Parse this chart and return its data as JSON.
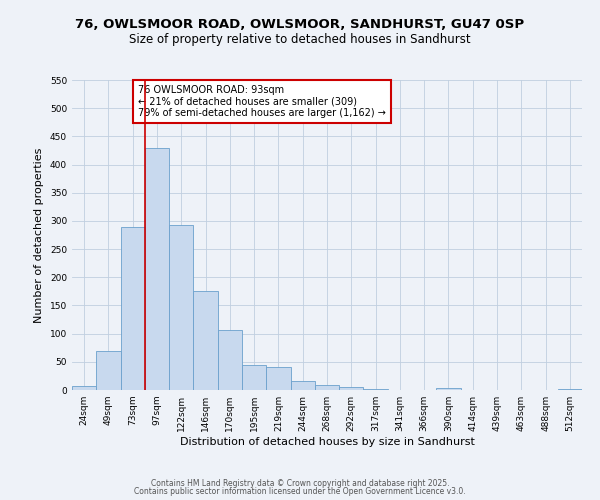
{
  "title": "76, OWLSMOOR ROAD, OWLSMOOR, SANDHURST, GU47 0SP",
  "subtitle": "Size of property relative to detached houses in Sandhurst",
  "xlabel": "Distribution of detached houses by size in Sandhurst",
  "ylabel": "Number of detached properties",
  "bar_color": "#c8d9ee",
  "bar_edge_color": "#6aa0cc",
  "grid_color": "#c0cfe0",
  "background_color": "#eef2f8",
  "bin_labels": [
    "24sqm",
    "49sqm",
    "73sqm",
    "97sqm",
    "122sqm",
    "146sqm",
    "170sqm",
    "195sqm",
    "219sqm",
    "244sqm",
    "268sqm",
    "292sqm",
    "317sqm",
    "341sqm",
    "366sqm",
    "390sqm",
    "414sqm",
    "439sqm",
    "463sqm",
    "488sqm",
    "512sqm"
  ],
  "bar_heights": [
    7,
    70,
    289,
    430,
    293,
    176,
    106,
    44,
    40,
    16,
    8,
    5,
    2,
    0,
    0,
    3,
    0,
    0,
    0,
    0,
    2
  ],
  "vline_color": "#cc0000",
  "annotation_title": "76 OWLSMOOR ROAD: 93sqm",
  "annotation_line2": "← 21% of detached houses are smaller (309)",
  "annotation_line3": "79% of semi-detached houses are larger (1,162) →",
  "annotation_box_edge": "#cc0000",
  "ylim": [
    0,
    550
  ],
  "yticks": [
    0,
    50,
    100,
    150,
    200,
    250,
    300,
    350,
    400,
    450,
    500,
    550
  ],
  "footer1": "Contains HM Land Registry data © Crown copyright and database right 2025.",
  "footer2": "Contains public sector information licensed under the Open Government Licence v3.0.",
  "title_fontsize": 9.5,
  "subtitle_fontsize": 8.5,
  "axis_label_fontsize": 8,
  "tick_fontsize": 6.5,
  "annotation_fontsize": 7,
  "footer_fontsize": 5.5
}
